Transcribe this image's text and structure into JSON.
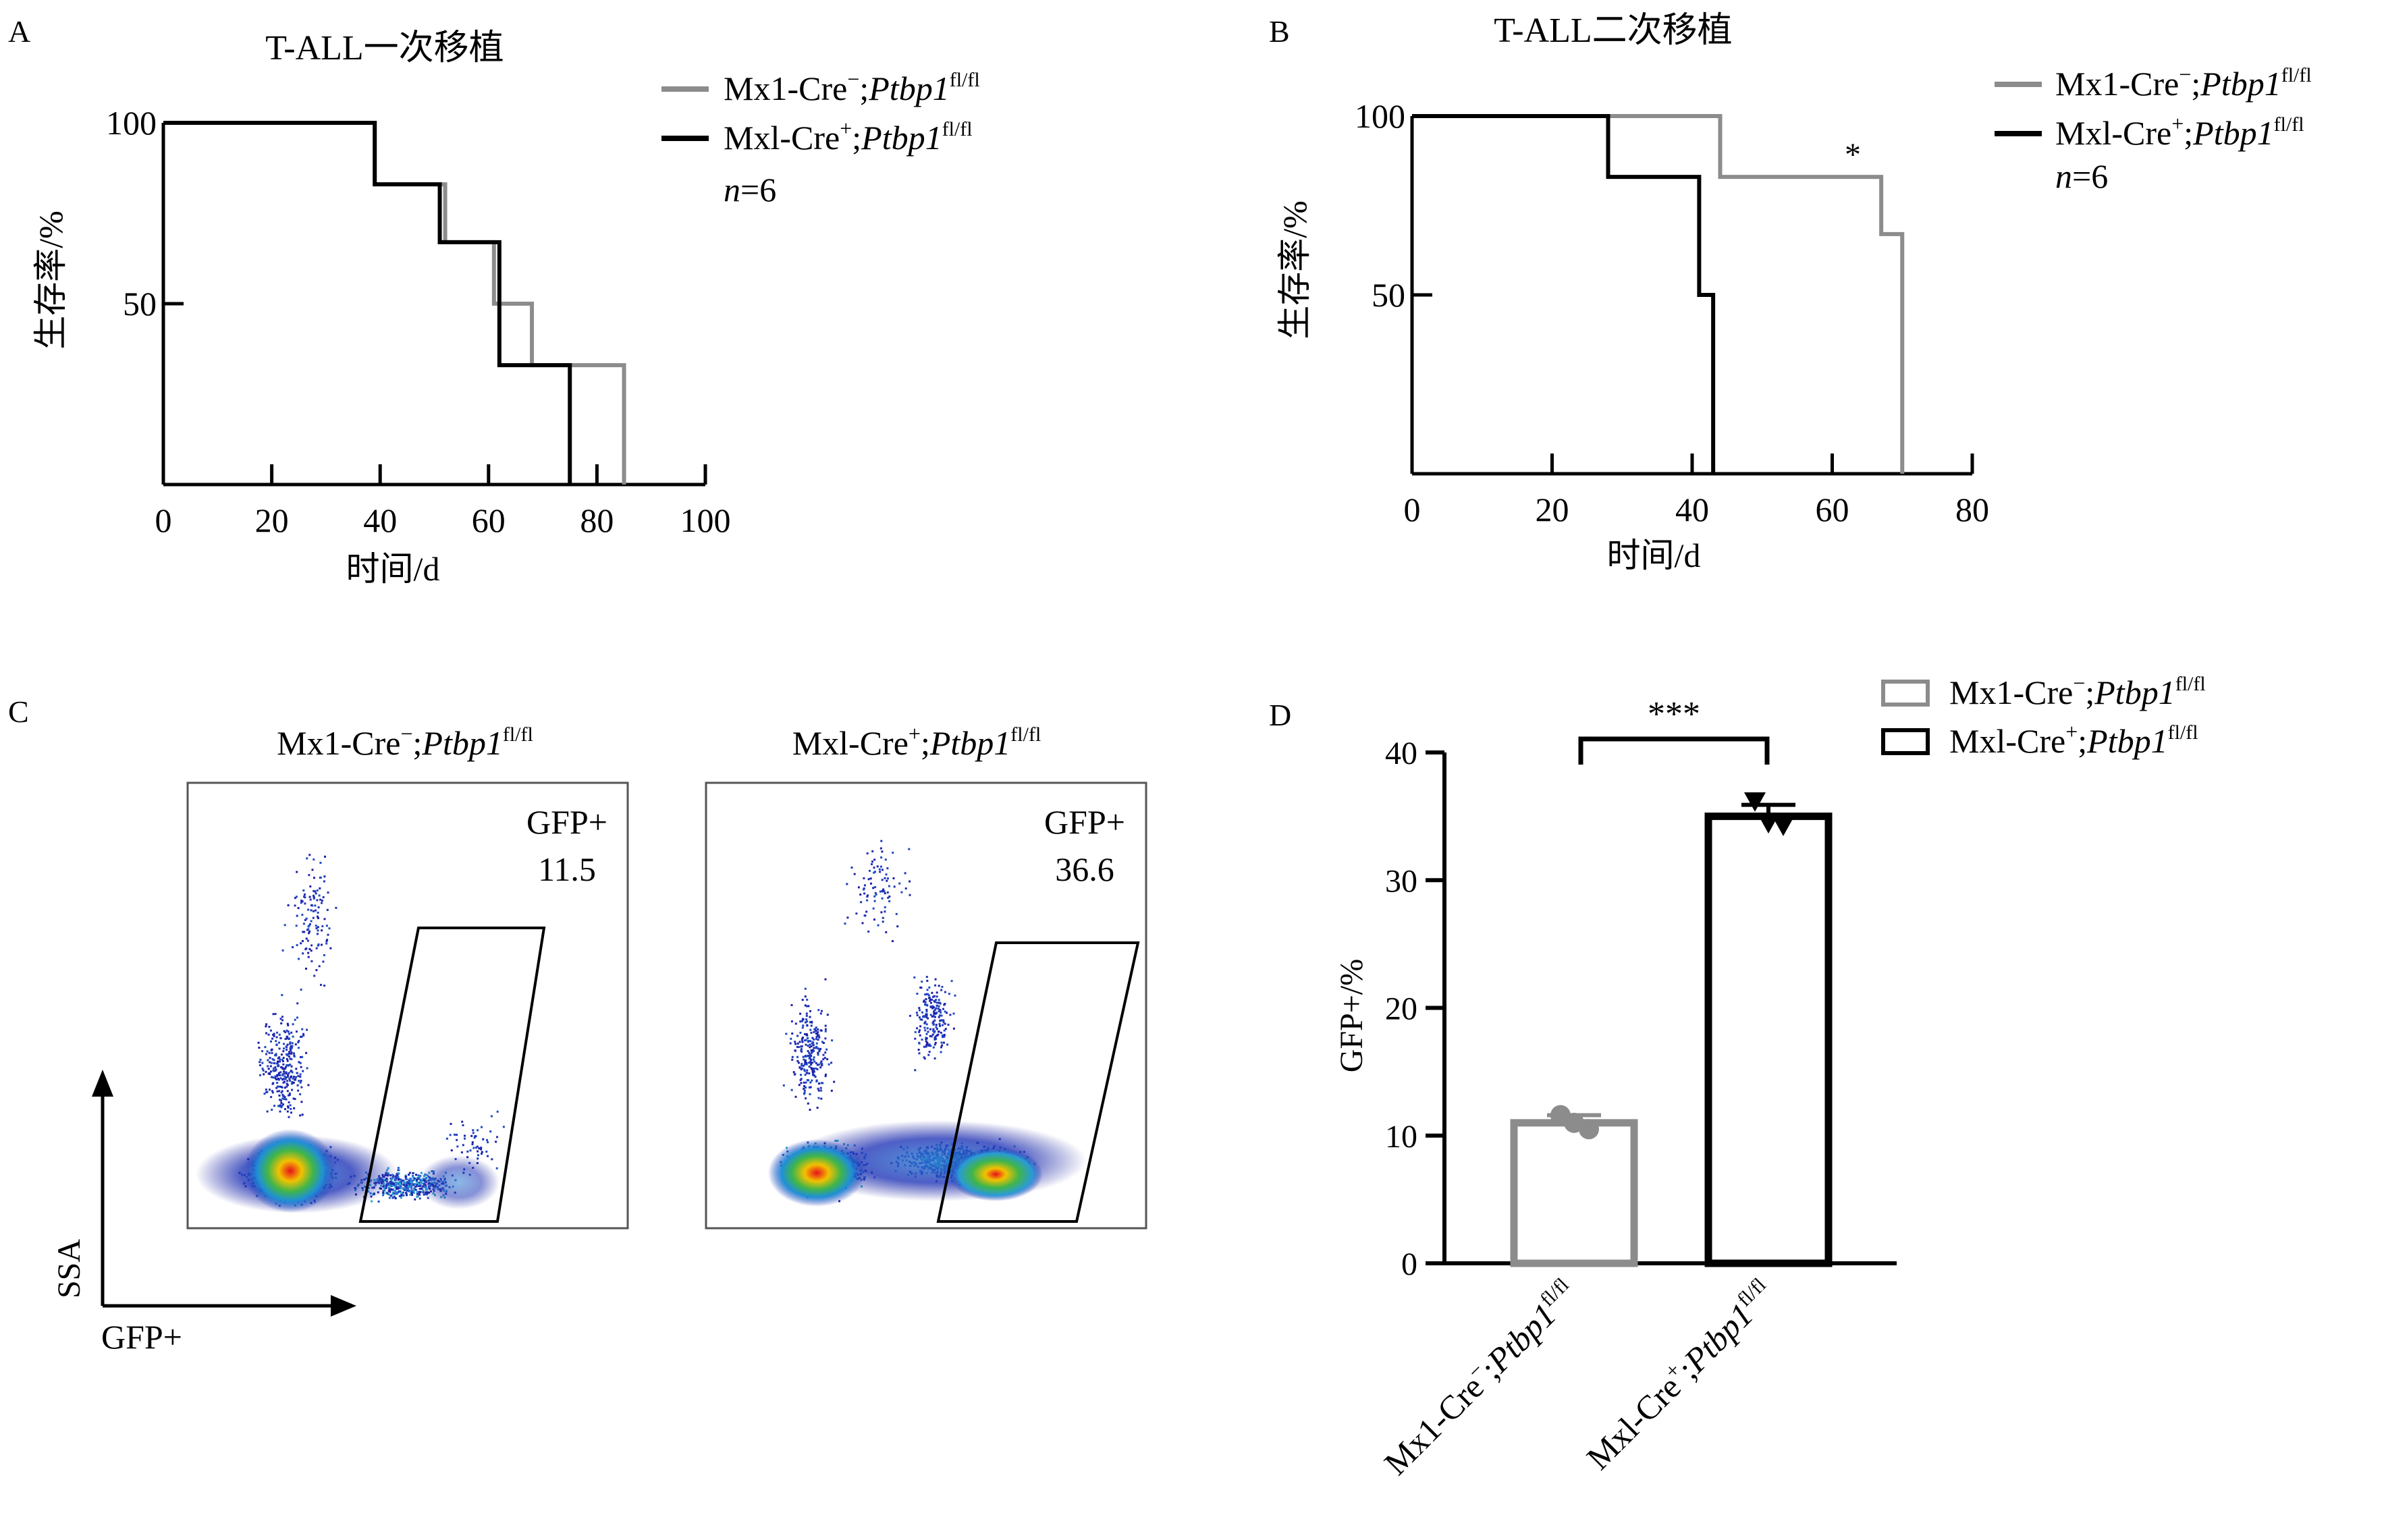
{
  "colors": {
    "control": "#8c8c8c",
    "knockout": "#000000",
    "axis": "#000000"
  },
  "panel_labels": {
    "a": "A",
    "b": "B",
    "c": "C",
    "d": "D"
  },
  "legend_text": {
    "ctrl_prefix": "Mx1-Cre",
    "ctrl_sup": "−",
    "ko_prefix": "Mxl-Cre",
    "ko_sup": "+",
    "gene": "Ptbp1",
    "gene_sup": "fl/fl",
    "sep": ";",
    "n_var": "n",
    "n_value": "=6"
  },
  "chart_data": [
    {
      "type": "line",
      "panel": "A",
      "title": "T-ALL一次移植",
      "xlabel": "时间/d",
      "ylabel": "生存率/%",
      "xlim": [
        0,
        100
      ],
      "ylim": [
        0,
        100
      ],
      "x_ticks": [
        0,
        20,
        40,
        60,
        80,
        100
      ],
      "y_ticks": [
        50,
        100
      ],
      "legend_position": "top-right",
      "series": [
        {
          "name": "Mx1-Cre−;Ptbp1fl/fl",
          "color": "#8c8c8c",
          "x": [
            0,
            39,
            39,
            52,
            52,
            61,
            61,
            68,
            68,
            85,
            85
          ],
          "y": [
            100,
            100,
            83,
            83,
            67,
            67,
            50,
            50,
            33,
            33,
            0
          ]
        },
        {
          "name": "Mxl-Cre+;Ptbp1fl/fl",
          "color": "#000000",
          "x": [
            0,
            39,
            39,
            51,
            51,
            62,
            62,
            75,
            75
          ],
          "y": [
            100,
            100,
            83,
            83,
            67,
            67,
            33,
            33,
            0
          ]
        }
      ]
    },
    {
      "type": "line",
      "panel": "B",
      "title": "T-ALL二次移植",
      "xlabel": "时间/d",
      "ylabel": "生存率/%",
      "xlim": [
        0,
        80
      ],
      "ylim": [
        0,
        100
      ],
      "x_ticks": [
        0,
        20,
        40,
        60,
        80
      ],
      "y_ticks": [
        50,
        100
      ],
      "legend_position": "top-right",
      "annotation": "*",
      "series": [
        {
          "name": "Mx1-Cre−;Ptbp1fl/fl",
          "color": "#8c8c8c",
          "x": [
            0,
            44,
            44,
            67,
            67,
            70,
            70
          ],
          "y": [
            100,
            100,
            83,
            83,
            67,
            67,
            0
          ]
        },
        {
          "name": "Mxl-Cre+;Ptbp1fl/fl",
          "color": "#000000",
          "x": [
            0,
            28,
            28,
            41,
            41,
            43,
            43
          ],
          "y": [
            100,
            100,
            83,
            83,
            50,
            50,
            0
          ]
        }
      ]
    },
    {
      "type": "scatter",
      "panel": "C",
      "xlabel": "GFP+",
      "ylabel": "SSA",
      "plots": [
        {
          "name": "Mx1-Cre−;Ptbp1fl/fl",
          "gate_label": "GFP+",
          "gate_value": "11.5"
        },
        {
          "name": "Mxl-Cre+;Ptbp1fl/fl",
          "gate_label": "GFP+",
          "gate_value": "36.6"
        }
      ]
    },
    {
      "type": "bar",
      "panel": "D",
      "ylabel": "GFP+/%",
      "ylim": [
        0,
        40
      ],
      "y_ticks": [
        0,
        10,
        20,
        30,
        40
      ],
      "legend_position": "top-right",
      "significance": "***",
      "categories": [
        "Mx1-Cre−;Ptbp1fl/fl",
        "Mxl-Cre+;Ptbp1fl/fl"
      ],
      "values": [
        11.0,
        35.0
      ],
      "errors": [
        0.6,
        0.9
      ],
      "points": [
        [
          11.6,
          11.0,
          10.5
        ],
        [
          36.2,
          34.5,
          34.3
        ]
      ],
      "colors": [
        "#8c8c8c",
        "#000000"
      ]
    }
  ]
}
